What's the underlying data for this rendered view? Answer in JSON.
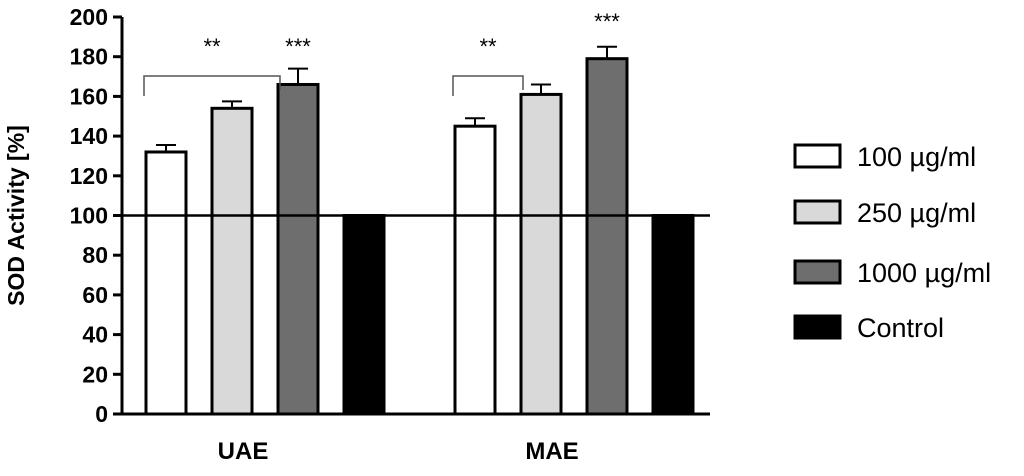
{
  "chart_data": {
    "type": "bar",
    "title": "",
    "xlabel": "",
    "ylabel": "SOD Activity [%]",
    "ylim": [
      0,
      200
    ],
    "yticks": [
      0,
      20,
      40,
      60,
      80,
      100,
      120,
      140,
      160,
      180,
      200
    ],
    "categories": [
      "UAE",
      "MAE"
    ],
    "series": [
      {
        "name": "100 µg/ml",
        "values": [
          132,
          145
        ],
        "errors": [
          3.5,
          4
        ],
        "color": "#ffffff"
      },
      {
        "name": "250 µg/ml",
        "values": [
          154,
          161
        ],
        "errors": [
          3.5,
          5
        ],
        "color": "#d9d9d9"
      },
      {
        "name": "1000 µg/ml",
        "values": [
          166,
          179
        ],
        "errors": [
          8,
          6
        ],
        "color": "#6e6e6e"
      },
      {
        "name": "Control",
        "values": [
          100,
          100
        ],
        "errors": [
          0,
          0
        ],
        "color": "#000000"
      }
    ],
    "reference_line": 100,
    "significance": [
      {
        "category": "UAE",
        "label": "**",
        "bracket": [
          "100 µg/ml",
          "1000 µg/ml"
        ]
      },
      {
        "category": "UAE",
        "label": "***",
        "over": "1000 µg/ml"
      },
      {
        "category": "MAE",
        "label": "**",
        "bracket": [
          "100 µg/ml",
          "250 µg/ml"
        ]
      },
      {
        "category": "MAE",
        "label": "***",
        "over": "1000 µg/ml"
      }
    ],
    "legend_position": "right",
    "grid": false
  }
}
